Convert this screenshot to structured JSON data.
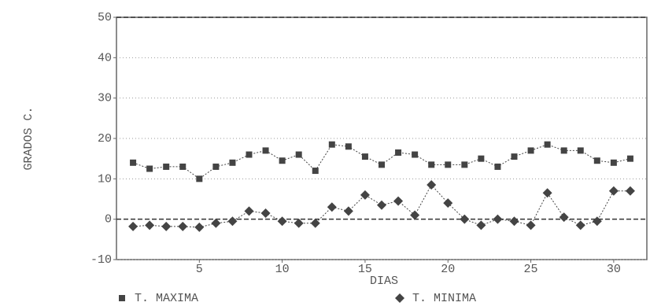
{
  "chart_data": {
    "type": "line",
    "x_label": "DIAS",
    "y_label": "GRADOS C.",
    "x": [
      1,
      2,
      3,
      4,
      5,
      6,
      7,
      8,
      9,
      10,
      11,
      12,
      13,
      14,
      15,
      16,
      17,
      18,
      19,
      20,
      21,
      22,
      23,
      24,
      25,
      26,
      27,
      28,
      29,
      30,
      31
    ],
    "series": [
      {
        "name": "T. MAXIMA",
        "color": "#444444",
        "marker": "square",
        "values": [
          14,
          12.5,
          13,
          13,
          10,
          13,
          14,
          16,
          17,
          14.5,
          16,
          12,
          18.5,
          18,
          15.5,
          13.5,
          16.5,
          16,
          13.5,
          13.5,
          13.5,
          15,
          13,
          15.5,
          17,
          18.5,
          17,
          17,
          14.5,
          14,
          15
        ]
      },
      {
        "name": "T. MINIMA",
        "color": "#444444",
        "marker": "diamond",
        "values": [
          -1.8,
          -1.5,
          -1.8,
          -1.8,
          -2,
          -1,
          -0.5,
          2,
          1.5,
          -0.5,
          -1,
          -1,
          3,
          2,
          6,
          3.5,
          4.5,
          1,
          8.5,
          4,
          0,
          -1.5,
          0,
          -0.5,
          -1.5,
          6.5,
          0.5,
          -1.5,
          -0.5,
          7,
          7
        ]
      }
    ],
    "xlim": [
      0,
      32
    ],
    "xticks": [
      5,
      10,
      15,
      20,
      25,
      30
    ],
    "ylim": [
      -10,
      50
    ],
    "yticks": [
      -10,
      0,
      10,
      20,
      30,
      40,
      50
    ],
    "grid": true
  }
}
